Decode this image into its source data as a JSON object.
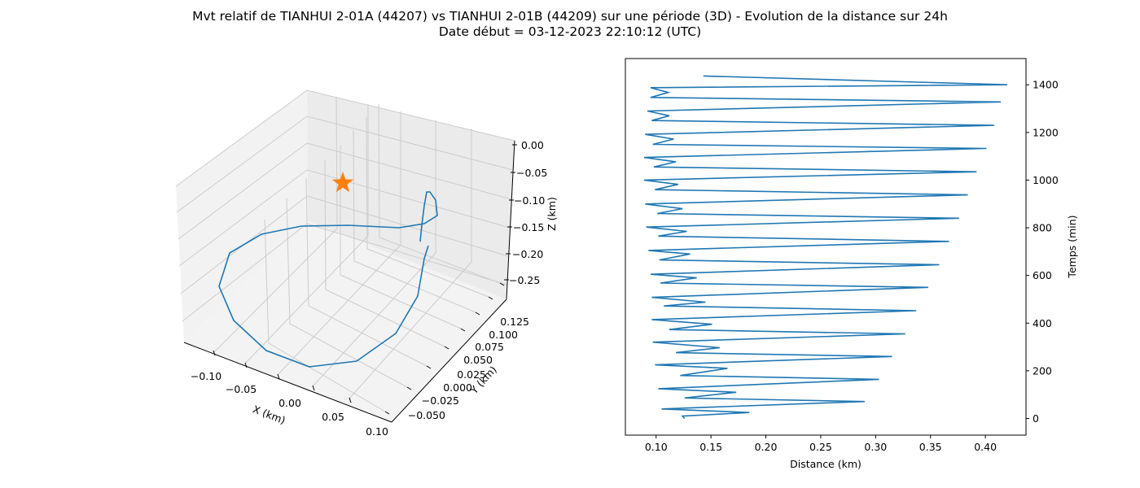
{
  "figure": {
    "title_line1": "Mvt relatif de TIANHUI 2-01A (44207) vs TIANHUI 2-01B (44209) sur une période (3D) - Evolution de la distance sur 24h",
    "title_line2": "Date début = 03-12-2023 22:10:12 (UTC)"
  },
  "colors": {
    "series": "#1f77b4",
    "marker": "#ff7f0e",
    "pane_light": "#f2f2f2",
    "pane_mid": "#ebebeb",
    "grid": "#cccccc"
  },
  "chart_data": [
    {
      "type": "line3d",
      "xlabel": "X (km)",
      "ylabel": "Y (km)",
      "zlabel": "Z (km)",
      "x_ticks": [
        "−0.10",
        "−0.05",
        "0.00",
        "0.05",
        "0.10"
      ],
      "y_ticks": [
        "−0.050",
        "−0.025",
        "0.000",
        "0.025",
        "0.050",
        "0.075",
        "0.100",
        "0.125"
      ],
      "z_ticks": [
        "0.00",
        "−0.05",
        "−0.10",
        "−0.15",
        "−0.20",
        "−0.25"
      ],
      "grid": true,
      "marker": {
        "shape": "star",
        "label": "origin"
      },
      "trajectory_points": 30
    },
    {
      "type": "line",
      "xlabel": "Distance (km)",
      "ylabel": "Temps (min)",
      "xlim": [
        0.072,
        0.437
      ],
      "ylim": [
        -70,
        1510
      ],
      "x_ticks": [
        "0.10",
        "0.15",
        "0.20",
        "0.25",
        "0.30",
        "0.35",
        "0.40"
      ],
      "x_tick_values": [
        0.1,
        0.15,
        0.2,
        0.25,
        0.3,
        0.35,
        0.4
      ],
      "y_ticks": [
        "0",
        "200",
        "400",
        "600",
        "800",
        "1000",
        "1200",
        "1400"
      ],
      "y_tick_values": [
        0,
        200,
        400,
        600,
        800,
        1000,
        1200,
        1400
      ],
      "series": [
        {
          "x": [
            0.126,
            0.124,
            0.185,
            0.105,
            0.29,
            0.126,
            0.173,
            0.102,
            0.303,
            0.122,
            0.165,
            0.099,
            0.315,
            0.118,
            0.158,
            0.097,
            0.327,
            0.112,
            0.151,
            0.096,
            0.337,
            0.107,
            0.145,
            0.096,
            0.348,
            0.104,
            0.137,
            0.095,
            0.358,
            0.103,
            0.131,
            0.093,
            0.367,
            0.102,
            0.128,
            0.091,
            0.376,
            0.101,
            0.124,
            0.09,
            0.384,
            0.099,
            0.12,
            0.089,
            0.392,
            0.098,
            0.118,
            0.089,
            0.401,
            0.097,
            0.116,
            0.09,
            0.408,
            0.096,
            0.112,
            0.092,
            0.414,
            0.095,
            0.111,
            0.095,
            0.42,
            0.143
          ],
          "y": [
            0,
            10,
            25,
            40,
            71,
            86,
            110,
            125,
            164,
            180,
            210,
            225,
            260,
            276,
            297,
            320,
            355,
            373,
            395,
            415,
            452,
            472,
            488,
            508,
            550,
            568,
            590,
            605,
            645,
            665,
            690,
            705,
            743,
            765,
            785,
            803,
            840,
            860,
            880,
            900,
            938,
            960,
            982,
            1000,
            1035,
            1055,
            1077,
            1095,
            1133,
            1150,
            1172,
            1192,
            1230,
            1250,
            1270,
            1290,
            1328,
            1347,
            1368,
            1388,
            1400,
            1437
          ]
        }
      ]
    }
  ]
}
